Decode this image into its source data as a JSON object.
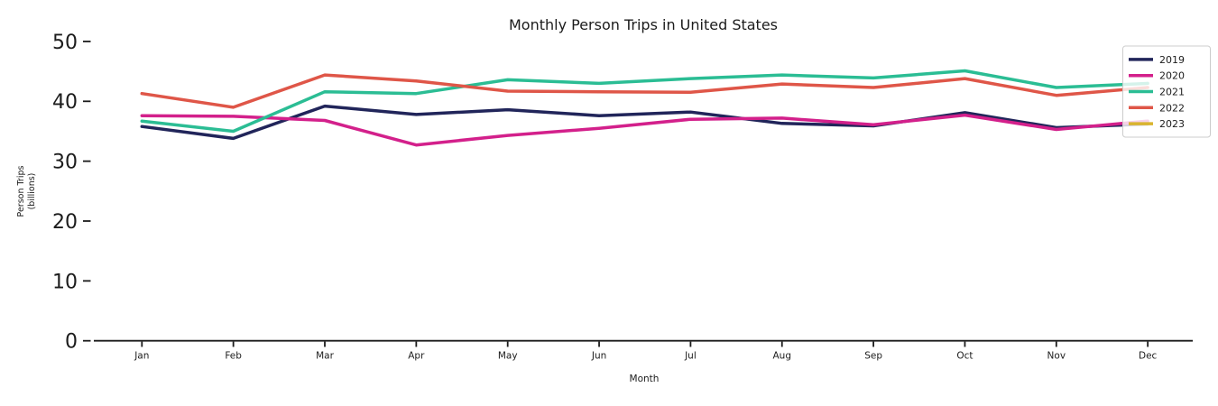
{
  "figure": {
    "background": "#ffffff",
    "text_color": "#1c1c1c",
    "axis_color": "#1c1c1c",
    "legend_border_color": "#cccccc",
    "legend_fill": "rgba(255,255,255,0.8)"
  },
  "chart_data": {
    "type": "line",
    "title": "Monthly Person Trips in United States",
    "xlabel": "Month",
    "ylabel": "Person Trips (billions)",
    "ylabel_lines": [
      "Person Trips",
      "(billions)"
    ],
    "categories": [
      "Jan",
      "Feb",
      "Mar",
      "Apr",
      "May",
      "Jun",
      "Jul",
      "Aug",
      "Sep",
      "Oct",
      "Nov",
      "Dec"
    ],
    "yticks": [
      0,
      10,
      20,
      30,
      40,
      50
    ],
    "ylim": [
      0,
      52
    ],
    "grid": false,
    "legend_position": "upper-right",
    "legend_entries": [
      "2019",
      "2020",
      "2021",
      "2022",
      "2023"
    ],
    "series": [
      {
        "name": "2019",
        "color": "#21255a",
        "values": [
          35.8,
          33.8,
          39.2,
          37.8,
          38.6,
          37.6,
          38.2,
          36.3,
          35.9,
          38.1,
          35.6,
          36.2
        ]
      },
      {
        "name": "2020",
        "color": "#d3208b",
        "values": [
          37.6,
          37.5,
          36.8,
          32.7,
          34.3,
          35.5,
          37.0,
          37.2,
          36.1,
          37.7,
          35.3,
          36.7
        ]
      },
      {
        "name": "2021",
        "color": "#2bbd94",
        "values": [
          36.7,
          35.0,
          41.6,
          41.3,
          43.6,
          43.0,
          43.8,
          44.4,
          43.9,
          45.1,
          42.3,
          43.0
        ]
      },
      {
        "name": "2022",
        "color": "#df5648",
        "values": [
          41.3,
          39.0,
          44.4,
          43.4,
          41.7,
          41.6,
          41.5,
          42.9,
          42.3,
          43.8,
          41.0,
          42.3
        ]
      },
      {
        "name": "2023",
        "color": "#d9b42f",
        "values": []
      }
    ]
  }
}
